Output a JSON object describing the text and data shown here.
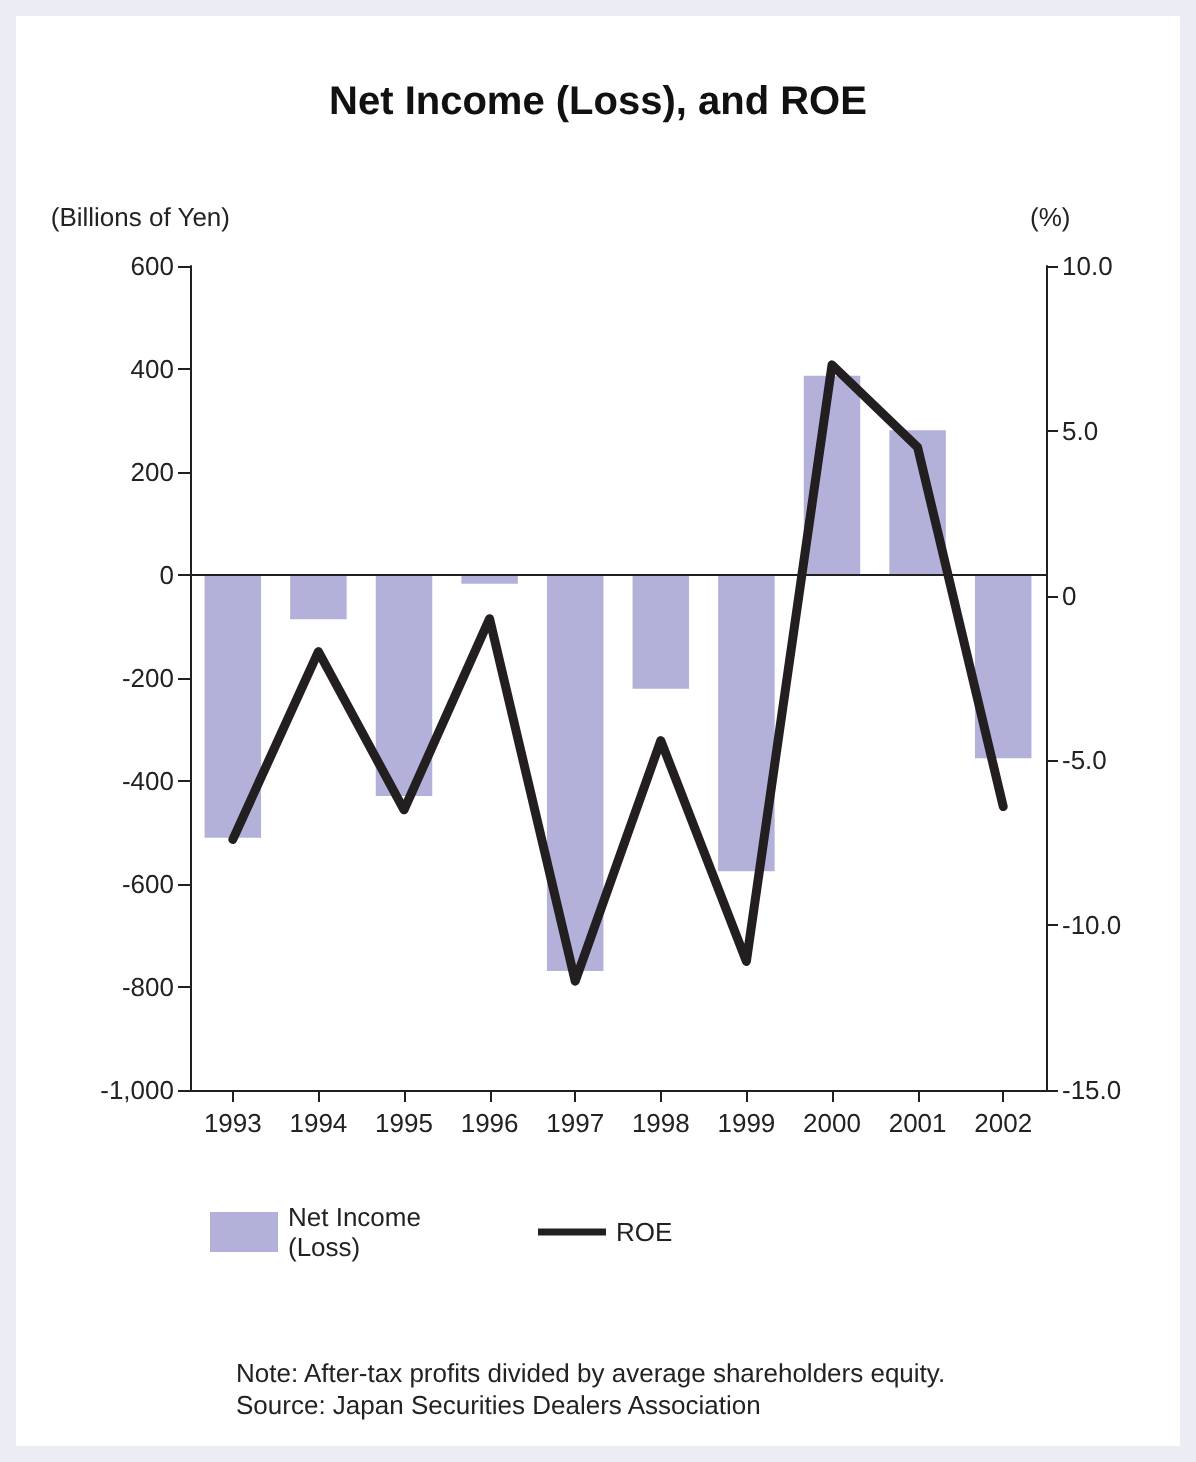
{
  "chart_data": {
    "type": "bar",
    "title": "Net Income (Loss), and ROE",
    "categories": [
      "1993",
      "1994",
      "1995",
      "1996",
      "1997",
      "1998",
      "1999",
      "2000",
      "2001",
      "2002"
    ],
    "series": [
      {
        "name": "Net Income (Loss)",
        "color": "#b3b0da",
        "values": [
          -510,
          -86,
          -429,
          -17,
          -769,
          -221,
          -575,
          387,
          281,
          -356
        ]
      },
      {
        "name": "ROE",
        "type": "line",
        "axis": "y2",
        "color": "#231f20",
        "values": [
          -7.4,
          -1.7,
          -6.5,
          -0.7,
          -11.7,
          -4.4,
          -11.1,
          7.0,
          4.5,
          -6.4
        ]
      }
    ],
    "ylabel": "(Billions of Yen)",
    "y2label": "(%)",
    "ylim": [
      -1000,
      600
    ],
    "yticks": [
      {
        "value": -1000,
        "label": "-1,000"
      },
      -800,
      -600,
      -400,
      -200,
      0,
      200,
      400,
      600
    ],
    "y2lim": [
      -15,
      10
    ],
    "y2ticks": [
      {
        "value": -15,
        "label": "-15.0"
      },
      {
        "value": -10,
        "label": "-10.0"
      },
      {
        "value": -5,
        "label": "-5.0"
      },
      0,
      {
        "value": 5,
        "label": "5.0"
      },
      {
        "value": 10,
        "label": "10.0"
      }
    ],
    "ref_lines": [
      {
        "axis": "y",
        "value": 0,
        "color": "#231f20"
      }
    ],
    "grid": false,
    "legend": "bottom",
    "marker": "none",
    "line_style": "solid",
    "annotations": [
      "Note: After-tax profits divided by average shareholders equity.",
      "Source: Japan Securities Dealers Association"
    ]
  }
}
